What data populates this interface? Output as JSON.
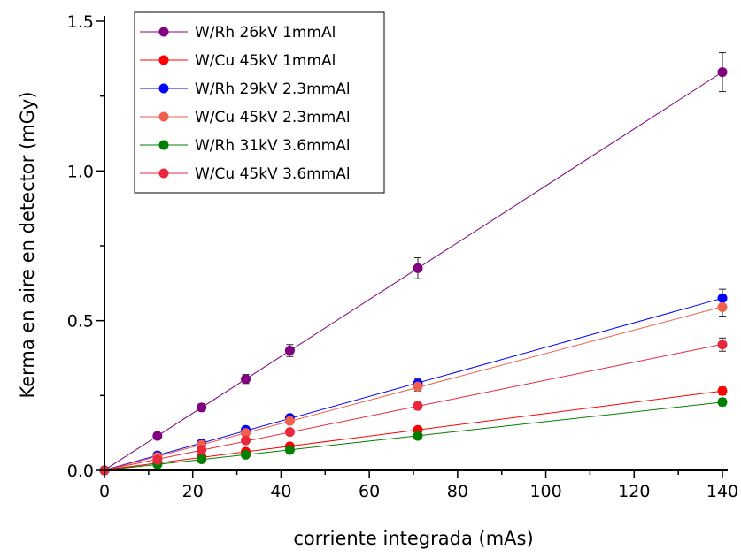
{
  "chart_data": {
    "type": "scatter",
    "xlabel": "corriente integrada (mAs)",
    "ylabel": "Kerma en aire en detector (mGy)",
    "xlim": [
      0,
      140
    ],
    "ylim": [
      0,
      1.5
    ],
    "x_ticks": [
      "0",
      "20",
      "40",
      "60",
      "80",
      "100",
      "120",
      "140"
    ],
    "y_ticks": [
      "0.0",
      "0.5",
      "1.0",
      "1.5"
    ],
    "grid": false,
    "legend_position": "top-left",
    "x": [
      0,
      12,
      22,
      32,
      42,
      71,
      140
    ],
    "series": [
      {
        "name": "W/Rh 26kV 1mmAl",
        "color": "#800080",
        "fit_line": true,
        "values": [
          0,
          0.115,
          0.21,
          0.305,
          0.4,
          0.675,
          1.33
        ],
        "errors": [
          0,
          0.01,
          0.012,
          0.015,
          0.02,
          0.035,
          0.065
        ]
      },
      {
        "name": "W/Cu 45kV 1mmAl",
        "color": "#ff0000",
        "fit_line": true,
        "values": [
          0,
          0.025,
          0.045,
          0.062,
          0.08,
          0.135,
          0.265
        ],
        "errors": [
          0,
          0.003,
          0.004,
          0.005,
          0.006,
          0.008,
          0.013
        ]
      },
      {
        "name": "W/Rh 29kV 2.3mmAl",
        "color": "#0000ff",
        "fit_line": true,
        "values": [
          0,
          0.05,
          0.09,
          0.135,
          0.175,
          0.29,
          0.575
        ],
        "errors": [
          0,
          0.004,
          0.006,
          0.008,
          0.01,
          0.015,
          0.03
        ]
      },
      {
        "name": "W/Cu 45kV 2.3mmAl",
        "color": "#f0604d",
        "fit_line": true,
        "values": [
          0,
          0.045,
          0.085,
          0.125,
          0.165,
          0.28,
          0.545
        ],
        "errors": [
          0,
          0.004,
          0.006,
          0.008,
          0.01,
          0.015,
          0.03
        ]
      },
      {
        "name": "W/Rh 31kV 3.6mmAl",
        "color": "#008000",
        "fit_line": true,
        "values": [
          0,
          0.02,
          0.037,
          0.052,
          0.068,
          0.115,
          0.228
        ],
        "errors": [
          0,
          0.002,
          0.003,
          0.004,
          0.005,
          0.007,
          0.012
        ]
      },
      {
        "name": "W/Cu 45kV 3.6mmAl",
        "color": "#e8283c",
        "fit_line": true,
        "values": [
          0,
          0.035,
          0.068,
          0.1,
          0.128,
          0.215,
          0.42
        ],
        "errors": [
          0,
          0.003,
          0.005,
          0.007,
          0.008,
          0.012,
          0.022
        ]
      }
    ]
  }
}
